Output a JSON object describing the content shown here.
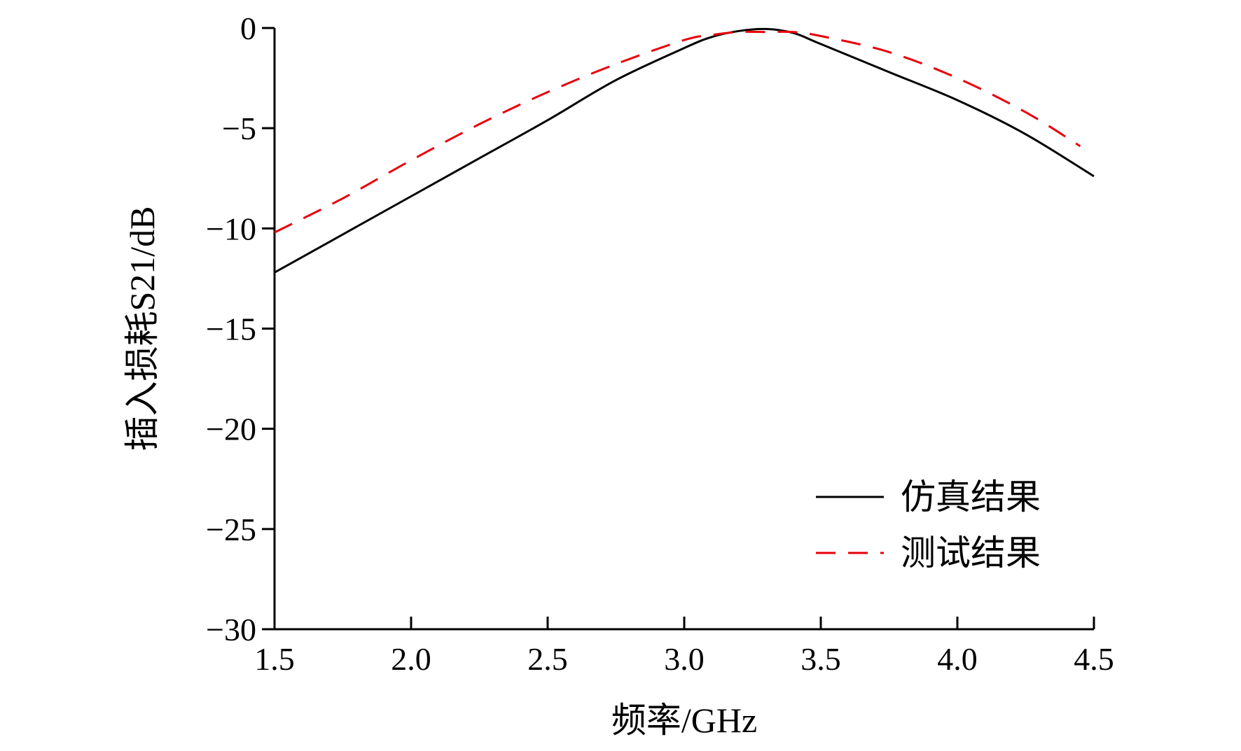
{
  "chart_data": {
    "type": "line",
    "title": "",
    "xlabel": "频率/GHz",
    "ylabel": "插入损耗S21/dB",
    "xlim": [
      1.5,
      4.5
    ],
    "ylim": [
      -30,
      0
    ],
    "xticks": [
      "1.5",
      "2.0",
      "2.5",
      "3.0",
      "3.5",
      "4.0",
      "4.5"
    ],
    "yticks": [
      "0",
      "−5",
      "−10",
      "−15",
      "−20",
      "−25",
      "−30"
    ],
    "grid": false,
    "legend_position": "bottom-right",
    "series": [
      {
        "name": "仿真结果",
        "color": "#000000",
        "dash": "solid",
        "x": [
          1.5,
          1.75,
          2.0,
          2.25,
          2.5,
          2.75,
          3.0,
          3.1,
          3.2,
          3.3,
          3.4,
          3.5,
          3.75,
          4.0,
          4.25,
          4.5
        ],
        "y": [
          -12.2,
          -10.3,
          -8.4,
          -6.5,
          -4.6,
          -2.6,
          -1.0,
          -0.45,
          -0.15,
          -0.05,
          -0.25,
          -0.8,
          -2.2,
          -3.6,
          -5.3,
          -7.4
        ]
      },
      {
        "name": "测试结果",
        "color": "#e8000b",
        "dash": "dashed",
        "x": [
          1.5,
          1.75,
          2.0,
          2.25,
          2.5,
          2.75,
          3.0,
          3.1,
          3.2,
          3.3,
          3.4,
          3.5,
          3.75,
          4.0,
          4.25,
          4.45
        ],
        "y": [
          -10.2,
          -8.5,
          -6.6,
          -4.8,
          -3.2,
          -1.8,
          -0.6,
          -0.35,
          -0.2,
          -0.2,
          -0.2,
          -0.4,
          -1.2,
          -2.5,
          -4.2,
          -5.9
        ]
      }
    ]
  }
}
